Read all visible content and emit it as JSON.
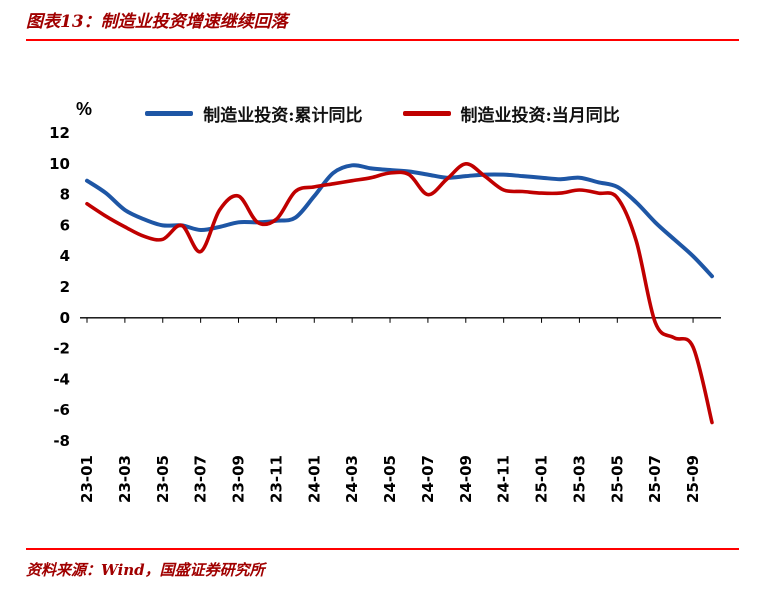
{
  "header": {
    "title": "图表13：制造业投资增速继续回落"
  },
  "footer": {
    "source": "资料来源：Wind，国盛证券研究所"
  },
  "colors": {
    "rule_red": "#FF0000",
    "title_red": "#A00000",
    "series_blue": "#1E56A5",
    "series_red": "#C00000",
    "axis_black": "#000000"
  },
  "chart_data": {
    "type": "line",
    "title": "图表13：制造业投资增速继续回落",
    "xlabel": "",
    "ylabel": "%",
    "ylim": [
      -8,
      12
    ],
    "ytick_step": 2,
    "grid": false,
    "legend_position": "top",
    "x": [
      "23-01",
      "23-02",
      "23-03",
      "23-04",
      "23-05",
      "23-06",
      "23-07",
      "23-08",
      "23-09",
      "23-10",
      "23-11",
      "23-12",
      "24-01",
      "24-02",
      "24-03",
      "24-04",
      "24-05",
      "24-06",
      "24-07",
      "24-08",
      "24-09",
      "24-10",
      "24-11",
      "24-12",
      "25-01",
      "25-02",
      "25-03",
      "25-04",
      "25-05",
      "25-06",
      "25-07",
      "25-08",
      "25-09",
      "25-10"
    ],
    "xtick_labels": [
      "23-01",
      "23-03",
      "23-05",
      "23-07",
      "23-09",
      "23-11",
      "24-01",
      "24-03",
      "24-05",
      "24-07",
      "24-09",
      "24-11",
      "25-01",
      "25-03",
      "25-05",
      "25-07",
      "25-09"
    ],
    "series": [
      {
        "name": "制造业投资:累计同比",
        "color": "#1E56A5",
        "values": [
          8.9,
          8.1,
          7.0,
          6.4,
          6.0,
          6.0,
          5.7,
          5.9,
          6.2,
          6.2,
          6.3,
          6.5,
          7.9,
          9.4,
          9.9,
          9.7,
          9.6,
          9.5,
          9.3,
          9.1,
          9.2,
          9.3,
          9.3,
          9.2,
          9.1,
          9.0,
          9.1,
          8.8,
          8.5,
          7.5,
          6.2,
          5.1,
          4.0,
          2.7
        ]
      },
      {
        "name": "制造业投资:当月同比",
        "color": "#C00000",
        "values": [
          7.4,
          6.6,
          5.9,
          5.3,
          5.1,
          6.0,
          4.3,
          7.0,
          7.9,
          6.2,
          6.4,
          8.2,
          8.5,
          8.7,
          8.9,
          9.1,
          9.4,
          9.3,
          8.0,
          9.0,
          10.0,
          9.2,
          8.3,
          8.2,
          8.1,
          8.1,
          8.3,
          8.1,
          7.8,
          5.0,
          -0.3,
          -1.3,
          -1.9,
          -6.8
        ]
      }
    ]
  }
}
